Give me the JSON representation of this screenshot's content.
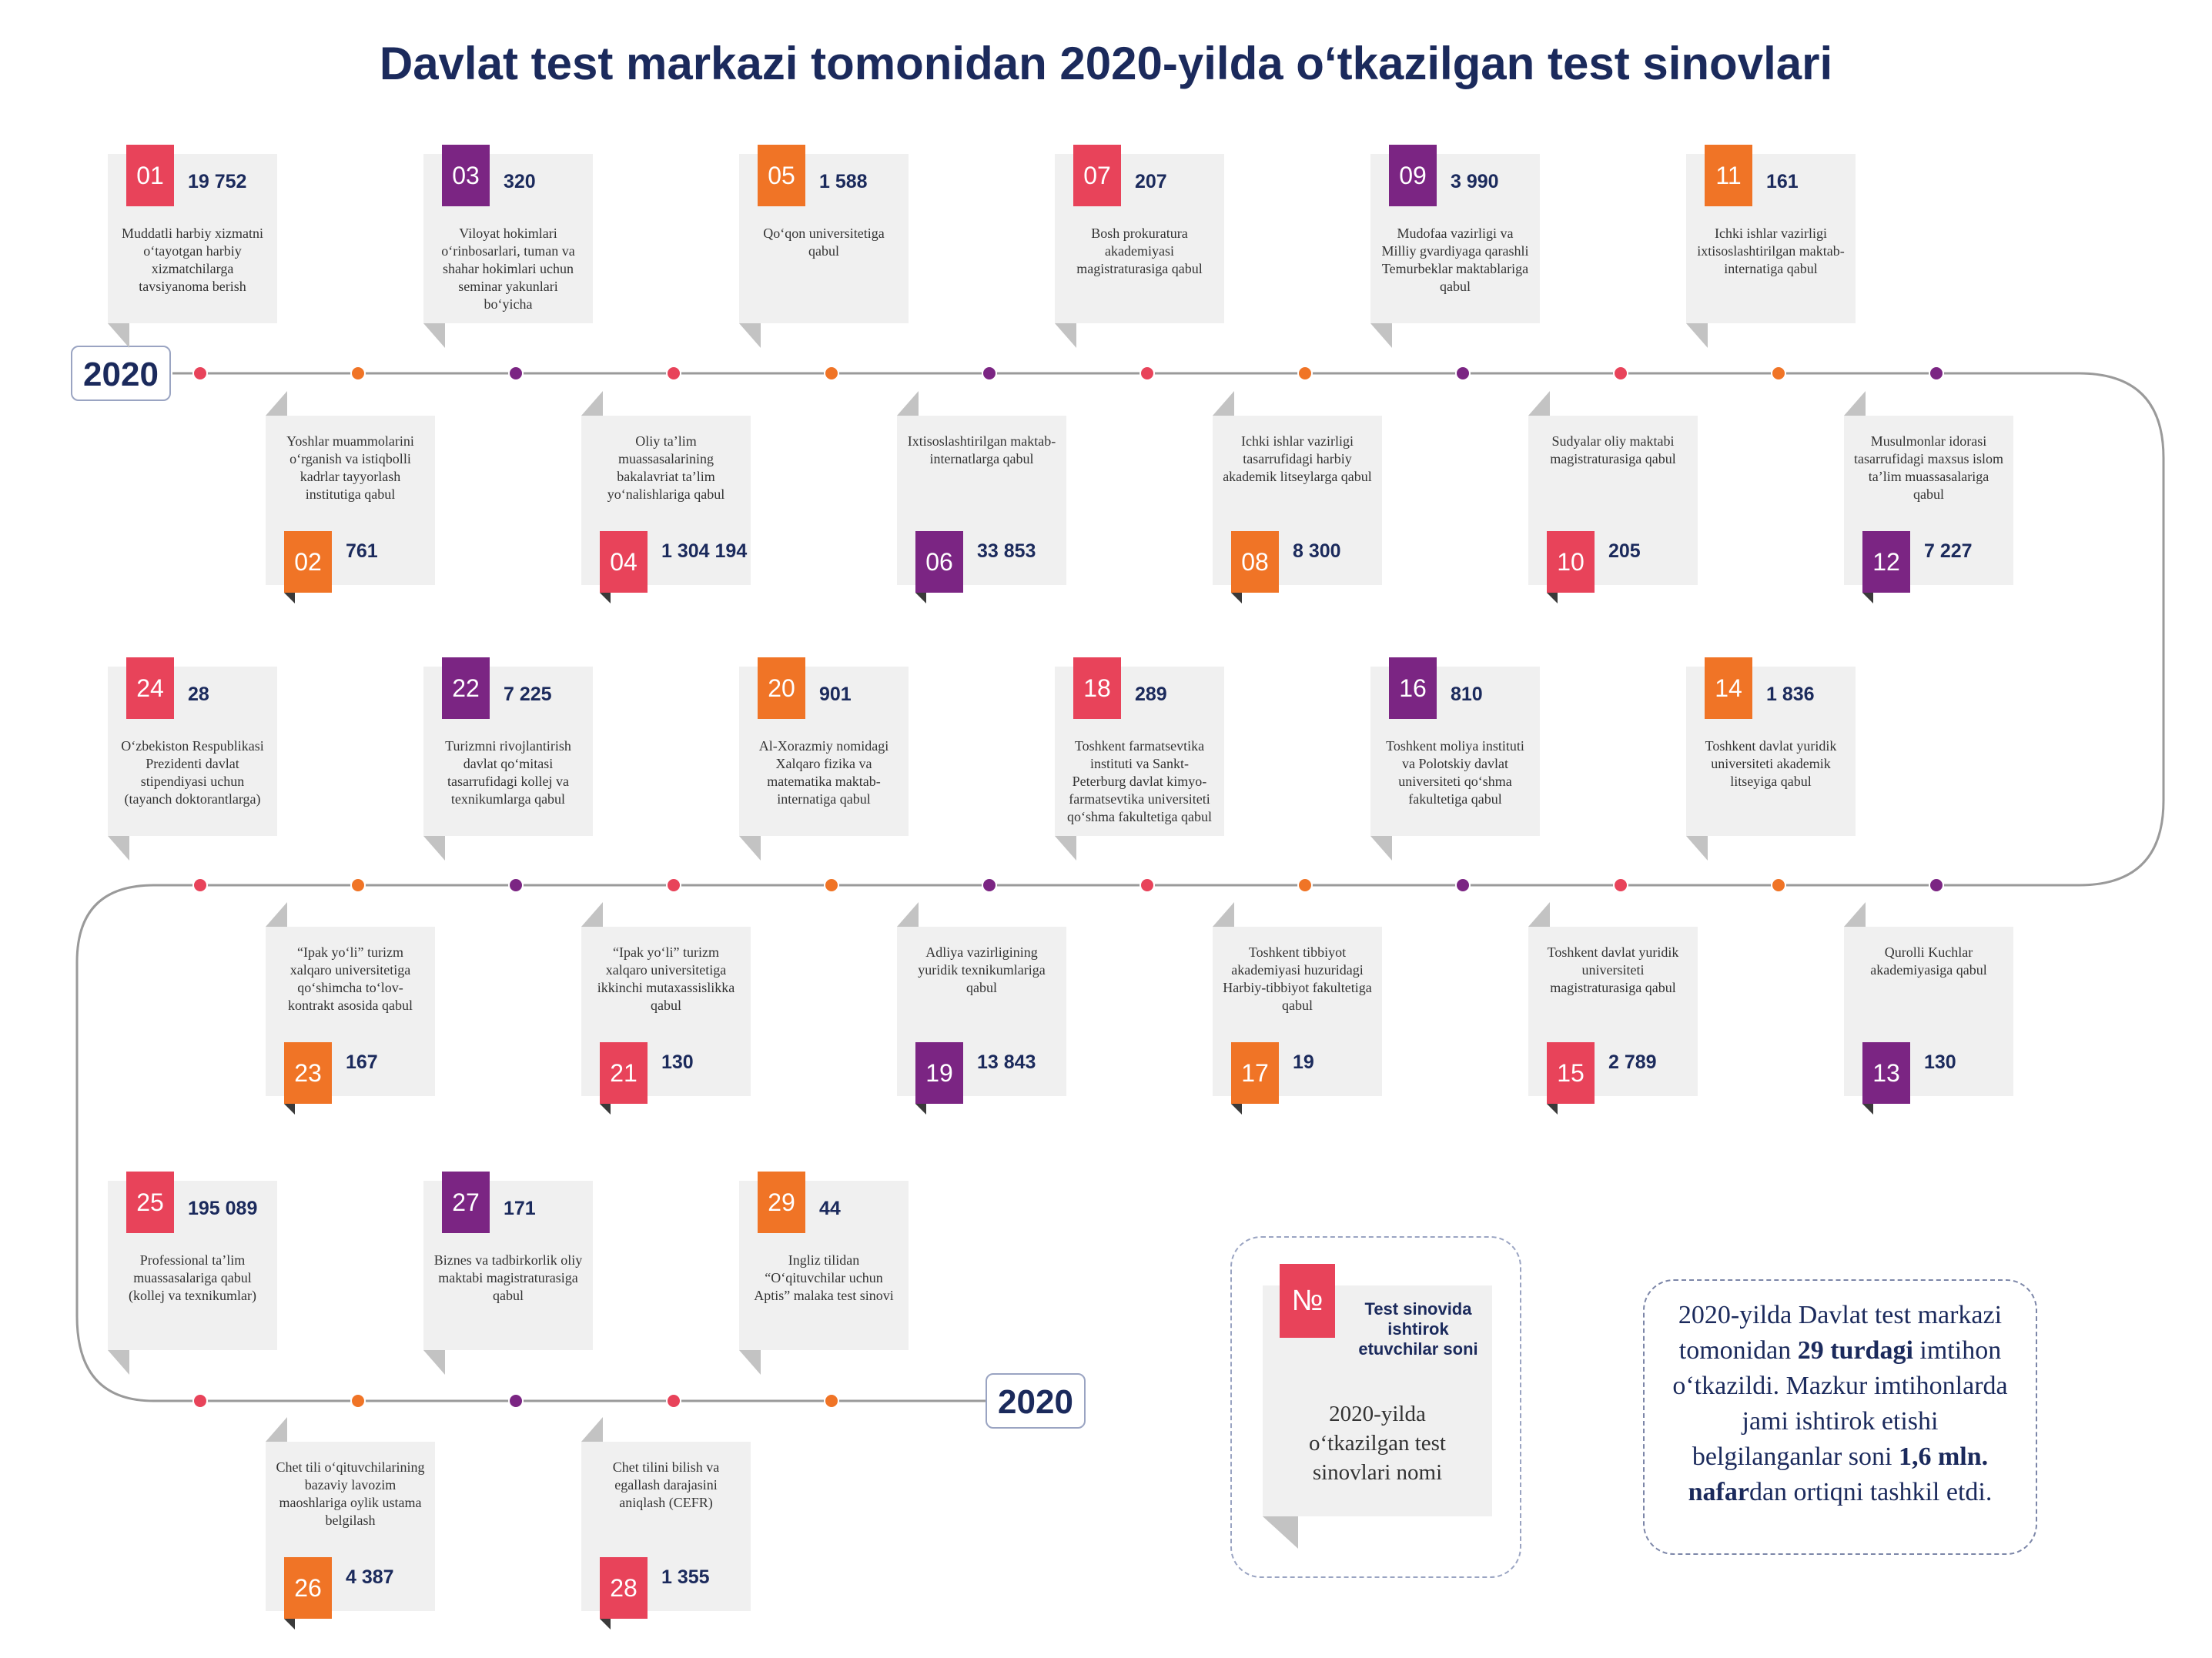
{
  "title": "Davlat test markazi tomonidan 2020-yilda o‘tkazilgan test sinovlari",
  "year_label": "2020",
  "colors": {
    "red": "#e8435a",
    "orange": "#f07426",
    "purple": "#7b2583",
    "navy": "#1b2a5c"
  },
  "items": [
    {
      "num": "01",
      "count": "19 752",
      "color": "red",
      "desc": "Muddatli harbiy xizmatni o‘tayotgan harbiy xizmatchilarga tavsiyanoma berish"
    },
    {
      "num": "02",
      "count": "761",
      "color": "orange",
      "desc": "Yoshlar muammolarini o‘rganish va istiqbolli kadrlar tayyorlash institutiga qabul"
    },
    {
      "num": "03",
      "count": "320",
      "color": "purple",
      "desc": "Viloyat hokimlari o‘rinbosarlari, tuman va shahar hokimlari uchun seminar yakunlari bo‘yicha"
    },
    {
      "num": "04",
      "count": "1 304 194",
      "color": "red",
      "desc": "Oliy ta’lim muassasalarining bakalavriat ta’lim yo‘nalishlariga qabul"
    },
    {
      "num": "05",
      "count": "1 588",
      "color": "orange",
      "desc": "Qo‘qon universitetiga qabul"
    },
    {
      "num": "06",
      "count": "33 853",
      "color": "purple",
      "desc": "Ixtisoslashtirilgan maktab-internatlarga qabul"
    },
    {
      "num": "07",
      "count": "207",
      "color": "red",
      "desc": "Bosh prokuratura akademiyasi magistraturasiga qabul"
    },
    {
      "num": "08",
      "count": "8 300",
      "color": "orange",
      "desc": "Ichki ishlar vazirligi tasarrufidagi harbiy akademik litseylarga qabul"
    },
    {
      "num": "09",
      "count": "3 990",
      "color": "purple",
      "desc": "Mudofaa vazirligi va Milliy gvardiyaga qarashli Temurbeklar maktablariga qabul"
    },
    {
      "num": "10",
      "count": "205",
      "color": "red",
      "desc": "Sudyalar oliy maktabi magistraturasiga qabul"
    },
    {
      "num": "11",
      "count": "161",
      "color": "orange",
      "desc": "Ichki ishlar vazirligi ixtisoslashtirilgan maktab-internatiga qabul"
    },
    {
      "num": "12",
      "count": "7 227",
      "color": "purple",
      "desc": "Musulmonlar idorasi tasarrufidagi maxsus islom ta’lim muassasalariga qabul"
    },
    {
      "num": "13",
      "count": "130",
      "color": "purple",
      "desc": "Qurolli Kuchlar akademiyasiga qabul"
    },
    {
      "num": "14",
      "count": "1 836",
      "color": "orange",
      "desc": "Toshkent davlat yuridik universiteti akademik litseyiga qabul"
    },
    {
      "num": "15",
      "count": "2 789",
      "color": "red",
      "desc": "Toshkent davlat yuridik universiteti magistraturasiga qabul"
    },
    {
      "num": "16",
      "count": "810",
      "color": "purple",
      "desc": "Toshkent moliya instituti va Polotskiy davlat universiteti qo‘shma fakultetiga qabul"
    },
    {
      "num": "17",
      "count": "19",
      "color": "orange",
      "desc": "Toshkent tibbiyot akademiyasi huzuridagi Harbiy-tibbiyot fakultetiga qabul"
    },
    {
      "num": "18",
      "count": "289",
      "color": "red",
      "desc": "Toshkent farmatsevtika instituti va Sankt-Peterburg davlat kimyo-farmatsevtika universiteti qo‘shma fakultetiga qabul"
    },
    {
      "num": "19",
      "count": "13 843",
      "color": "purple",
      "desc": "Adliya vazirligining yuridik texnikumlariga qabul"
    },
    {
      "num": "20",
      "count": "901",
      "color": "orange",
      "desc": "Al-Xorazmiy nomidagi Xalqaro fizika va matematika maktab-internatiga qabul"
    },
    {
      "num": "21",
      "count": "130",
      "color": "red",
      "desc": "“Ipak yo‘li” turizm xalqaro universitetiga ikkinchi mutaxassislikka qabul"
    },
    {
      "num": "22",
      "count": "7 225",
      "color": "purple",
      "desc": "Turizmni rivojlantirish davlat qo‘mitasi tasarrufidagi kollej va texnikumlarga qabul"
    },
    {
      "num": "23",
      "count": "167",
      "color": "orange",
      "desc": "“Ipak yo‘li” turizm xalqaro universitetiga qo‘shimcha to‘lov-kontrakt asosida qabul"
    },
    {
      "num": "24",
      "count": "28",
      "color": "red",
      "desc": "O‘zbekiston Respublikasi Prezidenti davlat stipendiyasi uchun (tayanch doktorantlarga)"
    },
    {
      "num": "25",
      "count": "195 089",
      "color": "red",
      "desc": "Professional ta’lim muassasalariga qabul (kollej va texnikumlar)"
    },
    {
      "num": "26",
      "count": "4 387",
      "color": "orange",
      "desc": "Chet tili o‘qituvchilarining bazaviy lavozim maoshlariga oylik ustama belgilash"
    },
    {
      "num": "27",
      "count": "171",
      "color": "purple",
      "desc": "Biznes va tadbirkorlik oliy maktabi magistraturasiga qabul"
    },
    {
      "num": "28",
      "count": "1 355",
      "color": "red",
      "desc": "Chet tilini bilish va egallash darajasini aniqlash (CEFR)"
    },
    {
      "num": "29",
      "count": "44",
      "color": "orange",
      "desc": "Ingliz tilidan “O‘qituvchilar uchun Aptis” malaka test sinovi"
    }
  ],
  "legend": {
    "badge": "№",
    "count_label": "Test sinovida ishtirok etuvchilar soni",
    "desc_label": "2020-yilda o‘tkazilgan test sinovlari nomi"
  },
  "summary": {
    "t1": "2020-yilda Davlat test markazi tomonidan ",
    "b1": "29 turdagi",
    "t2": " imtihon o‘tkazildi. Mazkur imtihonlarda jami ishtirok etishi belgilanganlar soni ",
    "b2": "1,6 mln. nafar",
    "t3": "dan ortiqni tashkil etdi."
  }
}
